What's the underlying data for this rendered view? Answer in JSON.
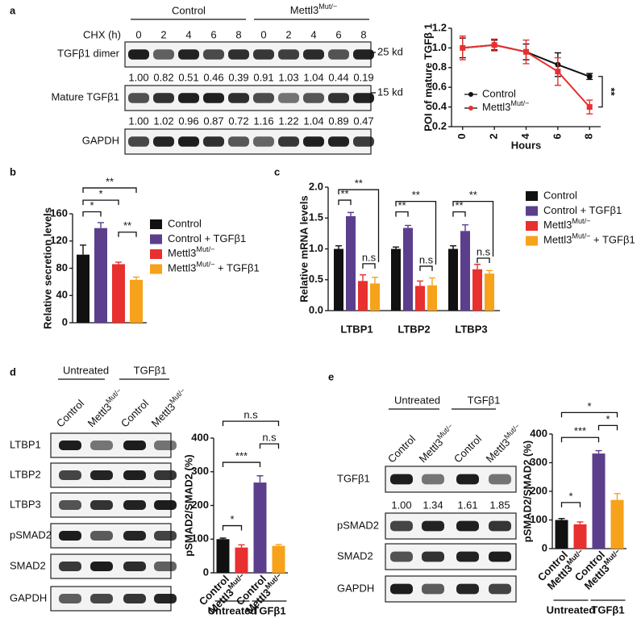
{
  "panel_labels": [
    "a",
    "b",
    "c",
    "d",
    "e"
  ],
  "blot_a": {
    "groups": [
      "Control",
      "Mettl3Mut/−"
    ],
    "time_label": "CHX (h)",
    "times": [
      0,
      2,
      4,
      6,
      8,
      0,
      2,
      4,
      6,
      8
    ],
    "rows": [
      {
        "label": "TGFβ1 dimer",
        "quant": [
          "1.00",
          "0.82",
          "0.51",
          "0.46",
          "0.39",
          "0.91",
          "1.03",
          "1.04",
          "0.44",
          "0.19"
        ]
      },
      {
        "label": "Mature TGFβ1",
        "quant": [
          "1.00",
          "1.02",
          "0.96",
          "0.87",
          "0.72",
          "1.16",
          "1.22",
          "1.04",
          "0.89",
          "0.47"
        ]
      },
      {
        "label": "GAPDH"
      }
    ],
    "markers": [
      "25 kd",
      "15 kd"
    ]
  },
  "blot_d": {
    "groups": [
      "Untreated",
      "TGFβ1"
    ],
    "lanes": [
      "Control",
      "Mettl3Mut/−",
      "Control",
      "Mettl3Mut/−"
    ],
    "rows": [
      {
        "label": "LTBP1"
      },
      {
        "label": "LTBP2"
      },
      {
        "label": "LTBP3"
      },
      {
        "label": "pSMAD2"
      },
      {
        "label": "SMAD2"
      },
      {
        "label": "GAPDH"
      }
    ]
  },
  "blot_e": {
    "groups": [
      "Untreated",
      "TGFβ1"
    ],
    "lanes": [
      "Control",
      "Mettl3Mut/−",
      "Control",
      "Mettl3Mut/−"
    ],
    "rows": [
      {
        "label": "TGFβ1",
        "quant": [
          "1.00",
          "1.34",
          "1.61",
          "1.85"
        ]
      },
      {
        "label": "pSMAD2"
      },
      {
        "label": "SMAD2"
      },
      {
        "label": "GAPDH"
      }
    ]
  },
  "chart_data": [
    {
      "type": "line",
      "y_label": "POI of mature TGFβ 1",
      "x_label": "Hours",
      "x": [
        0,
        2,
        4,
        6,
        8
      ],
      "xlim": [
        -0.7,
        8.7
      ],
      "xticks": [
        0,
        2,
        4,
        6,
        8
      ],
      "ylim": [
        0.2,
        1.2
      ],
      "yticks": [
        0.2,
        0.4,
        0.6,
        0.8,
        {
          "value": 1,
          "label": "1.0"
        },
        1.2
      ],
      "series": [
        {
          "name": "Control",
          "color": "#111111",
          "values": [
            1.0,
            1.03,
            0.96,
            0.83,
            0.71
          ],
          "errors": [
            0.1,
            0.05,
            0.08,
            0.12,
            0.03
          ]
        },
        {
          "name": "Mettl3Mut/−",
          "color": "#e8302f",
          "values": [
            1.0,
            1.03,
            0.96,
            0.76,
            0.4
          ],
          "errors": [
            0.12,
            0.06,
            0.12,
            0.14,
            0.07
          ]
        }
      ],
      "annotations": [
        "**"
      ]
    },
    {
      "type": "bar",
      "y_label": "Relative secretion levels",
      "categories": [
        null
      ],
      "ylim": [
        0,
        160
      ],
      "yticks": [
        0,
        40,
        80,
        120,
        160
      ],
      "series": [
        {
          "name": "Control",
          "color": "#111111",
          "values": [
            100
          ],
          "errors": [
            14
          ]
        },
        {
          "name": "Control + TGFβ1",
          "color": "#5b3f8c",
          "values": [
            139
          ],
          "errors": [
            8
          ]
        },
        {
          "name": "Mettl3Mut/−",
          "color": "#e8302f",
          "values": [
            86
          ],
          "errors": [
            3
          ]
        },
        {
          "name": "Mettl3Mut/− + TGFβ1",
          "color": "#f7a21b",
          "values": [
            63
          ],
          "errors": [
            4
          ]
        }
      ],
      "annotations": [
        "*",
        "*",
        "**",
        "**"
      ]
    },
    {
      "type": "bar",
      "y_label": "Relative mRNA levels",
      "categories": [
        "LTBP1",
        "LTBP2",
        "LTBP3"
      ],
      "ylim": [
        0,
        2
      ],
      "yticks": [
        {
          "value": 0,
          "label": "0.0"
        },
        0.5,
        {
          "value": 1,
          "label": "1.0"
        },
        1.5,
        {
          "value": 2,
          "label": "2.0"
        }
      ],
      "series": [
        {
          "name": "Control",
          "color": "#111111",
          "values": [
            1.0,
            1.0,
            1.0
          ],
          "errors": [
            0.05,
            0.03,
            0.05
          ]
        },
        {
          "name": "Control + TGFβ1",
          "color": "#5b3f8c",
          "values": [
            1.53,
            1.34,
            1.29
          ],
          "errors": [
            0.06,
            0.04,
            0.1
          ]
        },
        {
          "name": "Mettl3Mut/−",
          "color": "#e8302f",
          "values": [
            0.48,
            0.4,
            0.67
          ],
          "errors": [
            0.1,
            0.08,
            0.08
          ]
        },
        {
          "name": "Mettl3Mut/− + TGFβ1",
          "color": "#f7a21b",
          "values": [
            0.44,
            0.41,
            0.6
          ],
          "errors": [
            0.1,
            0.12,
            0.05
          ]
        }
      ],
      "annotations": [
        "**",
        "**",
        "n.s",
        "**",
        "**",
        "n.s",
        "**",
        "**",
        "n.s"
      ]
    },
    {
      "type": "bar",
      "y_label": "pSMAD2/SMAD2 (%)",
      "categories": [
        "Control",
        "Mettl3Mut/−",
        "Control",
        "Mettl3Mut/−"
      ],
      "groups": [
        "Untreated",
        "TGFβ1"
      ],
      "ylim": [
        0,
        400
      ],
      "yticks": [
        0,
        100,
        200,
        300,
        400
      ],
      "values": [
        100,
        75,
        268,
        80
      ],
      "errors": [
        3,
        8,
        20,
        4
      ],
      "colors": [
        "#111111",
        "#e8302f",
        "#5b3f8c",
        "#f7a21b"
      ],
      "annotations": [
        "*",
        "***",
        "n.s",
        "n.s"
      ]
    },
    {
      "type": "bar",
      "y_label": "pSMAD2/SMAD2 (%)",
      "categories": [
        "Control",
        "Mettl3Mut/−",
        "Control",
        "Mettl3Mut/−"
      ],
      "groups": [
        "Untreated",
        "TGFβ1"
      ],
      "ylim": [
        0,
        400
      ],
      "yticks": [
        0,
        100,
        200,
        300,
        400
      ],
      "values": [
        100,
        85,
        332,
        170
      ],
      "errors": [
        5,
        8,
        10,
        22
      ],
      "colors": [
        "#111111",
        "#e8302f",
        "#5b3f8c",
        "#f7a21b"
      ],
      "annotations": [
        "*",
        "***",
        "*",
        "*"
      ]
    }
  ]
}
